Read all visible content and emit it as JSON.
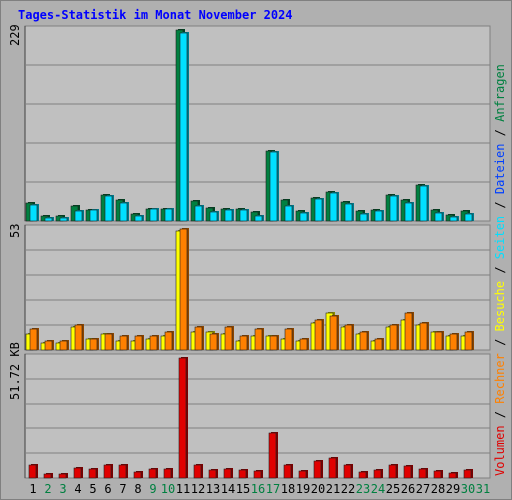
{
  "title": "Tages-Statistik im Monat November 2024",
  "chart_data": [
    {
      "type": "bar",
      "panel": "Anfragen / Dateien",
      "ylabel": "229",
      "ylim": [
        0,
        229
      ],
      "categories": [
        "1",
        "2",
        "3",
        "4",
        "5",
        "6",
        "7",
        "8",
        "9",
        "10",
        "11",
        "12",
        "13",
        "14",
        "15",
        "16",
        "17",
        "18",
        "19",
        "20",
        "21",
        "22",
        "23",
        "24",
        "25",
        "26",
        "27",
        "28",
        "29",
        "30",
        "31"
      ],
      "series": [
        {
          "name": "Anfragen",
          "color": "#008040",
          "values": [
            22,
            6,
            6,
            18,
            13,
            31,
            25,
            8,
            14,
            14,
            229,
            24,
            15,
            14,
            14,
            11,
            84,
            25,
            12,
            27,
            35,
            23,
            12,
            13,
            31,
            25,
            43,
            13,
            7,
            12,
            0
          ]
        },
        {
          "name": "Dateien",
          "color": "#00e0ff",
          "values": [
            19,
            4,
            4,
            12,
            13,
            30,
            21,
            6,
            14,
            14,
            226,
            18,
            11,
            13,
            13,
            6,
            83,
            18,
            10,
            26,
            33,
            20,
            8,
            12,
            30,
            22,
            42,
            10,
            5,
            8,
            0
          ]
        }
      ]
    },
    {
      "type": "bar",
      "panel": "Seiten / Besuche",
      "ylabel": "53",
      "ylim": [
        0,
        53
      ],
      "categories": [
        "1",
        "2",
        "3",
        "4",
        "5",
        "6",
        "7",
        "8",
        "9",
        "10",
        "11",
        "12",
        "13",
        "14",
        "15",
        "16",
        "17",
        "18",
        "19",
        "20",
        "21",
        "22",
        "23",
        "24",
        "25",
        "26",
        "27",
        "28",
        "29",
        "30",
        "31"
      ],
      "series": [
        {
          "name": "Seiten",
          "color": "#ffff00",
          "values": [
            7,
            3,
            3,
            10,
            5,
            7,
            4,
            4,
            5,
            6,
            52,
            8,
            8,
            7,
            4,
            6,
            6,
            5,
            4,
            12,
            16,
            10,
            7,
            4,
            10,
            13,
            11,
            8,
            6,
            6,
            0
          ]
        },
        {
          "name": "Besuche",
          "color": "#ff8000",
          "values": [
            9,
            4,
            4,
            11,
            5,
            7,
            6,
            6,
            6,
            8,
            53,
            10,
            7,
            10,
            6,
            9,
            6,
            9,
            5,
            13,
            15,
            11,
            8,
            5,
            11,
            16,
            12,
            8,
            7,
            8,
            0
          ]
        }
      ]
    },
    {
      "type": "bar",
      "panel": "Volumen",
      "ylabel": "51.72 KB",
      "ylim": [
        0,
        51.72
      ],
      "categories": [
        "1",
        "2",
        "3",
        "4",
        "5",
        "6",
        "7",
        "8",
        "9",
        "10",
        "11",
        "12",
        "13",
        "14",
        "15",
        "16",
        "17",
        "18",
        "19",
        "20",
        "21",
        "22",
        "23",
        "24",
        "25",
        "26",
        "27",
        "28",
        "29",
        "30",
        "31"
      ],
      "series": [
        {
          "name": "Volumen",
          "color": "#e00000",
          "values": [
            5.5,
            1.6,
            1.6,
            4.5,
            4.0,
            5.5,
            5.8,
            2.5,
            3.9,
            3.9,
            51.7,
            5.8,
            3.4,
            3.8,
            3.6,
            3.0,
            19.3,
            5.5,
            3.2,
            7.3,
            8.7,
            5.6,
            2.8,
            3.4,
            5.6,
            5.0,
            4.0,
            3.2,
            2.3,
            3.4,
            0
          ]
        }
      ]
    }
  ],
  "legend": {
    "items": [
      {
        "label": "Volumen",
        "color": "#e00000"
      },
      {
        "label": "Rechner",
        "color": "#ff8000"
      },
      {
        "label": "Besuche",
        "color": "#ffff00"
      },
      {
        "label": "Seiten",
        "color": "#00e0ff"
      },
      {
        "label": "Dateien",
        "color": "#0040ff"
      },
      {
        "label": "Anfragen",
        "color": "#008040"
      }
    ]
  },
  "weekend_days": [
    "2",
    "3",
    "9",
    "10",
    "16",
    "17",
    "23",
    "24",
    "30",
    "31"
  ],
  "colors": {
    "weekday": "#000000",
    "weekend": "#008040",
    "grid": "#808080",
    "background": "#b0b0b0"
  }
}
